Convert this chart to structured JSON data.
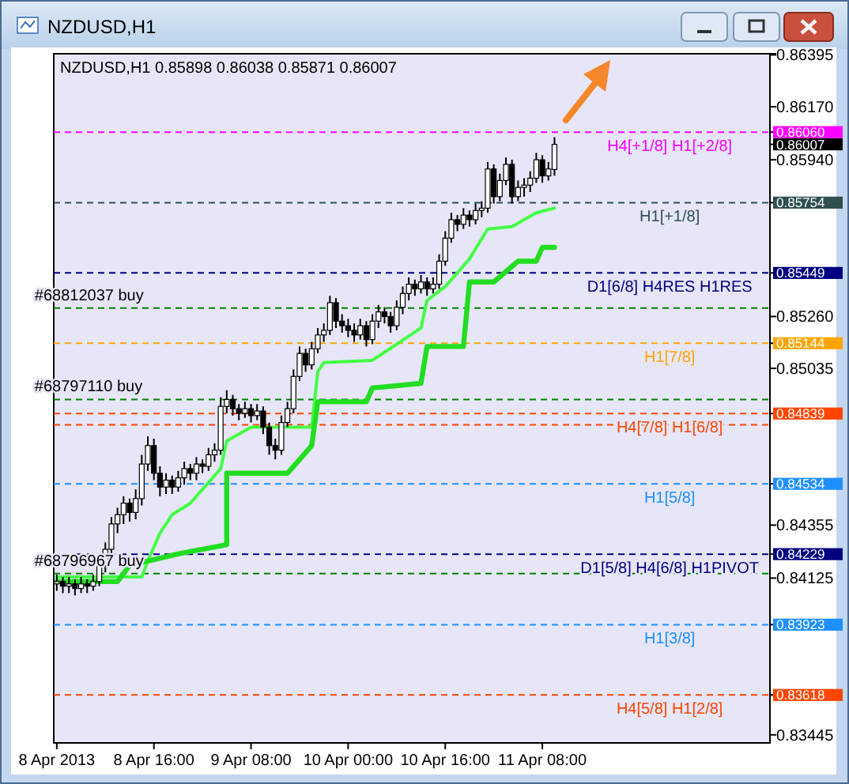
{
  "chart_data": {
    "type": "candlestick",
    "title": "NZDUSD,H1",
    "subtitle": "NZDUSD,H1  0.85898 0.86038 0.85871 0.86007",
    "x": [
      "2013-04-08T00:00",
      "2013-04-08T01:00",
      "2013-04-08T02:00",
      "2013-04-08T03:00",
      "2013-04-08T04:00",
      "2013-04-08T05:00",
      "2013-04-08T06:00",
      "2013-04-08T07:00",
      "2013-04-08T08:00",
      "2013-04-08T09:00",
      "2013-04-08T10:00",
      "2013-04-08T11:00",
      "2013-04-08T12:00",
      "2013-04-08T13:00",
      "2013-04-08T14:00",
      "2013-04-08T15:00",
      "2013-04-08T16:00",
      "2013-04-08T17:00",
      "2013-04-08T18:00",
      "2013-04-08T19:00",
      "2013-04-08T20:00",
      "2013-04-08T21:00",
      "2013-04-08T22:00",
      "2013-04-08T23:00",
      "2013-04-09T00:00",
      "2013-04-09T01:00",
      "2013-04-09T02:00",
      "2013-04-09T03:00",
      "2013-04-09T04:00",
      "2013-04-09T05:00",
      "2013-04-09T06:00",
      "2013-04-09T07:00",
      "2013-04-09T08:00",
      "2013-04-09T09:00",
      "2013-04-09T10:00",
      "2013-04-09T11:00",
      "2013-04-09T12:00",
      "2013-04-09T13:00",
      "2013-04-09T14:00",
      "2013-04-09T15:00",
      "2013-04-09T16:00",
      "2013-04-09T17:00",
      "2013-04-09T18:00",
      "2013-04-09T19:00",
      "2013-04-09T20:00",
      "2013-04-09T21:00",
      "2013-04-09T22:00",
      "2013-04-09T23:00",
      "2013-04-10T00:00",
      "2013-04-10T01:00",
      "2013-04-10T02:00",
      "2013-04-10T03:00",
      "2013-04-10T04:00",
      "2013-04-10T05:00",
      "2013-04-10T06:00",
      "2013-04-10T07:00",
      "2013-04-10T08:00",
      "2013-04-10T09:00",
      "2013-04-10T10:00",
      "2013-04-10T11:00",
      "2013-04-10T12:00",
      "2013-04-10T13:00",
      "2013-04-10T14:00",
      "2013-04-10T15:00",
      "2013-04-10T16:00",
      "2013-04-10T17:00",
      "2013-04-10T18:00",
      "2013-04-10T19:00",
      "2013-04-10T20:00",
      "2013-04-10T21:00",
      "2013-04-10T22:00",
      "2013-04-10T23:00",
      "2013-04-11T00:00",
      "2013-04-11T01:00",
      "2013-04-11T02:00",
      "2013-04-11T03:00",
      "2013-04-11T04:00",
      "2013-04-11T05:00",
      "2013-04-11T06:00",
      "2013-04-11T07:00",
      "2013-04-11T08:00",
      "2013-04-11T09:00",
      "2013-04-11T10:00"
    ],
    "ohlc": [
      [
        0.841,
        0.8414,
        0.8407,
        0.8411
      ],
      [
        0.8411,
        0.8413,
        0.8406,
        0.8409
      ],
      [
        0.8409,
        0.8413,
        0.8406,
        0.841
      ],
      [
        0.841,
        0.8412,
        0.8405,
        0.8408
      ],
      [
        0.8408,
        0.8413,
        0.8406,
        0.841
      ],
      [
        0.841,
        0.8412,
        0.8406,
        0.8409
      ],
      [
        0.8409,
        0.8414,
        0.8407,
        0.8411
      ],
      [
        0.8411,
        0.8421,
        0.8409,
        0.8418
      ],
      [
        0.8418,
        0.8428,
        0.8415,
        0.8425
      ],
      [
        0.8425,
        0.8439,
        0.8422,
        0.8436
      ],
      [
        0.8436,
        0.8443,
        0.8432,
        0.844
      ],
      [
        0.844,
        0.8448,
        0.8436,
        0.8445
      ],
      [
        0.8445,
        0.8447,
        0.8437,
        0.8441
      ],
      [
        0.8441,
        0.8451,
        0.8438,
        0.8447
      ],
      [
        0.8447,
        0.8466,
        0.8444,
        0.8462
      ],
      [
        0.8462,
        0.8474,
        0.8459,
        0.847
      ],
      [
        0.847,
        0.8473,
        0.8455,
        0.8458
      ],
      [
        0.8458,
        0.8461,
        0.8448,
        0.8452
      ],
      [
        0.8452,
        0.8458,
        0.8449,
        0.8455
      ],
      [
        0.8455,
        0.8457,
        0.8449,
        0.8452
      ],
      [
        0.8452,
        0.8459,
        0.845,
        0.8456
      ],
      [
        0.8456,
        0.8463,
        0.8453,
        0.846
      ],
      [
        0.846,
        0.8462,
        0.8455,
        0.8458
      ],
      [
        0.8458,
        0.8465,
        0.8455,
        0.8462
      ],
      [
        0.8462,
        0.8464,
        0.8458,
        0.8461
      ],
      [
        0.8461,
        0.8469,
        0.8459,
        0.8466
      ],
      [
        0.8466,
        0.8471,
        0.8463,
        0.8468
      ],
      [
        0.8468,
        0.8491,
        0.8466,
        0.8487
      ],
      [
        0.8487,
        0.8494,
        0.8484,
        0.849
      ],
      [
        0.849,
        0.8492,
        0.8483,
        0.8486
      ],
      [
        0.8486,
        0.8488,
        0.8481,
        0.8484
      ],
      [
        0.8484,
        0.8489,
        0.8482,
        0.8486
      ],
      [
        0.8486,
        0.8488,
        0.848,
        0.8483
      ],
      [
        0.8483,
        0.8488,
        0.8481,
        0.8485
      ],
      [
        0.8485,
        0.8487,
        0.8475,
        0.8478
      ],
      [
        0.8478,
        0.848,
        0.8466,
        0.847
      ],
      [
        0.847,
        0.8473,
        0.8464,
        0.8468
      ],
      [
        0.8468,
        0.8483,
        0.8466,
        0.848
      ],
      [
        0.848,
        0.8489,
        0.8478,
        0.8486
      ],
      [
        0.8486,
        0.8503,
        0.8484,
        0.85
      ],
      [
        0.85,
        0.8513,
        0.8498,
        0.851
      ],
      [
        0.851,
        0.8512,
        0.8502,
        0.8505
      ],
      [
        0.8505,
        0.8515,
        0.8503,
        0.8512
      ],
      [
        0.8512,
        0.8521,
        0.851,
        0.8518
      ],
      [
        0.8518,
        0.8523,
        0.8515,
        0.852
      ],
      [
        0.852,
        0.8535,
        0.8518,
        0.8532
      ],
      [
        0.8532,
        0.8534,
        0.8521,
        0.8524
      ],
      [
        0.8524,
        0.8527,
        0.8519,
        0.8522
      ],
      [
        0.8522,
        0.8525,
        0.8517,
        0.852
      ],
      [
        0.852,
        0.8523,
        0.8515,
        0.8518
      ],
      [
        0.8518,
        0.8525,
        0.8516,
        0.8522
      ],
      [
        0.8522,
        0.8524,
        0.8513,
        0.8516
      ],
      [
        0.8516,
        0.8527,
        0.8514,
        0.8524
      ],
      [
        0.8524,
        0.8531,
        0.8521,
        0.8528
      ],
      [
        0.8528,
        0.853,
        0.8523,
        0.8526
      ],
      [
        0.8526,
        0.8528,
        0.8519,
        0.8522
      ],
      [
        0.8522,
        0.8533,
        0.852,
        0.853
      ],
      [
        0.853,
        0.8539,
        0.8527,
        0.8536
      ],
      [
        0.8536,
        0.8543,
        0.8533,
        0.854
      ],
      [
        0.854,
        0.8542,
        0.8535,
        0.8538
      ],
      [
        0.8538,
        0.8544,
        0.8536,
        0.8541
      ],
      [
        0.8541,
        0.8543,
        0.8535,
        0.8538
      ],
      [
        0.8538,
        0.8543,
        0.8536,
        0.854
      ],
      [
        0.854,
        0.8553,
        0.8538,
        0.855
      ],
      [
        0.855,
        0.8563,
        0.8548,
        0.856
      ],
      [
        0.856,
        0.8571,
        0.8558,
        0.8568
      ],
      [
        0.8568,
        0.857,
        0.8563,
        0.8566
      ],
      [
        0.8566,
        0.8573,
        0.8564,
        0.857
      ],
      [
        0.857,
        0.8572,
        0.8565,
        0.8568
      ],
      [
        0.8568,
        0.8575,
        0.8566,
        0.8572
      ],
      [
        0.8572,
        0.8576,
        0.8569,
        0.8573
      ],
      [
        0.8573,
        0.8593,
        0.8571,
        0.859
      ],
      [
        0.859,
        0.8592,
        0.8575,
        0.8578
      ],
      [
        0.8578,
        0.8588,
        0.8576,
        0.8585
      ],
      [
        0.8585,
        0.8595,
        0.8583,
        0.8592
      ],
      [
        0.8592,
        0.8594,
        0.8575,
        0.8578
      ],
      [
        0.8578,
        0.8585,
        0.8576,
        0.8582
      ],
      [
        0.8582,
        0.8586,
        0.8578,
        0.8583
      ],
      [
        0.8583,
        0.8589,
        0.858,
        0.8586
      ],
      [
        0.8586,
        0.8597,
        0.8584,
        0.8594
      ],
      [
        0.8594,
        0.8596,
        0.8584,
        0.8587
      ],
      [
        0.8587,
        0.8593,
        0.8585,
        0.859
      ],
      [
        0.85898,
        0.86038,
        0.85871,
        0.86007
      ]
    ],
    "series": [
      {
        "type": "line",
        "color": "#44ff44",
        "x": [
          "2013-04-08T00:00",
          "2013-04-08T14:00",
          "2013-04-08T15:00",
          "2013-04-08T17:00",
          "2013-04-08T19:00",
          "2013-04-08T22:00",
          "2013-04-09T03:00",
          "2013-04-09T04:00",
          "2013-04-09T08:00",
          "2013-04-09T18:00",
          "2013-04-09T19:00",
          "2013-04-09T20:00",
          "2013-04-10T04:00",
          "2013-04-10T08:00",
          "2013-04-10T12:00",
          "2013-04-10T13:00",
          "2013-04-10T15:00",
          "2013-04-10T16:00",
          "2013-04-10T20:00",
          "2013-04-10T23:00",
          "2013-04-11T03:00",
          "2013-04-11T07:00",
          "2013-04-11T10:00"
        ],
        "values": [
          0.8413,
          0.8413,
          0.842,
          0.8432,
          0.844,
          0.8445,
          0.846,
          0.8472,
          0.8478,
          0.8478,
          0.8502,
          0.8506,
          0.8507,
          0.8514,
          0.8521,
          0.8533,
          0.8537,
          0.8539,
          0.8551,
          0.8564,
          0.8565,
          0.8571,
          0.8573
        ]
      },
      {
        "type": "line",
        "color": "#22dd22",
        "x": [
          "2013-04-08T00:00",
          "2013-04-08T10:00",
          "2013-04-08T12:00",
          "2013-04-08T20:00",
          "2013-04-09T04:00",
          "2013-04-09T04:00",
          "2013-04-09T14:00",
          "2013-04-09T18:00",
          "2013-04-09T19:00",
          "2013-04-10T03:00",
          "2013-04-10T04:00",
          "2013-04-10T12:00",
          "2013-04-10T13:00",
          "2013-04-10T19:00",
          "2013-04-10T20:00",
          "2013-04-11T00:00",
          "2013-04-11T04:00",
          "2013-04-11T07:00",
          "2013-04-11T08:00",
          "2013-04-11T10:00"
        ],
        "values": [
          0.8411,
          0.8411,
          0.8418,
          0.8423,
          0.8427,
          0.8458,
          0.8458,
          0.847,
          0.8489,
          0.8489,
          0.8495,
          0.8497,
          0.8513,
          0.8513,
          0.8541,
          0.8541,
          0.855,
          0.855,
          0.8556,
          0.8556
        ]
      }
    ],
    "xlim": [
      "2013-04-07T23:30",
      "2013-04-12T21:30"
    ],
    "xticks": [
      {
        "value": "2013-04-08T00:00",
        "label": "8 Apr 2013"
      },
      {
        "value": "2013-04-08T16:00",
        "label": "8 Apr 16:00"
      },
      {
        "value": "2013-04-09T08:00",
        "label": "9 Apr 08:00"
      },
      {
        "value": "2013-04-10T00:00",
        "label": "10 Apr 00:00"
      },
      {
        "value": "2013-04-10T16:00",
        "label": "10 Apr 16:00"
      },
      {
        "value": "2013-04-11T08:00",
        "label": "11 Apr 08:00"
      }
    ],
    "ylim": [
      0.8341,
      0.864
    ],
    "yticks": [
      0.86395,
      {
        "value": 0.8617,
        "label": "0.86170"
      },
      {
        "value": 0.8606,
        "label": "0.86060"
      },
      {
        "value": 0.86007,
        "label": "0.86007"
      },
      {
        "value": 0.8594,
        "label": "0.85940"
      },
      {
        "value": 0.85754,
        "label": "0.85754"
      },
      {
        "value": 0.85449,
        "label": "0.85449"
      },
      {
        "value": 0.8526,
        "label": "0.85260"
      },
      {
        "value": 0.85144,
        "label": "0.85144"
      },
      0.85035,
      {
        "value": 0.84839,
        "label": "0.84839"
      },
      {
        "value": 0.84534,
        "label": "0.84534"
      },
      0.84355,
      {
        "value": 0.84229,
        "label": "0.84229"
      },
      0.84125,
      {
        "value": 0.83923,
        "label": "0.83923"
      },
      {
        "value": 0.83618,
        "label": "0.83618"
      },
      0.83445
    ],
    "ref_lines": [
      {
        "axis": "y",
        "value": 0.8606,
        "label": "H4[+1/8] H1[+2/8]",
        "color": "#ff00ff",
        "line_style": "dashed"
      },
      {
        "axis": "y",
        "value": 0.85754,
        "label": "H1[+1/8]",
        "color": "#2f4f4f",
        "line_style": "dashed"
      },
      {
        "axis": "y",
        "value": 0.85449,
        "label": "D1[6/8] H4RES H1RES",
        "color": "#000080",
        "line_style": "dashed"
      },
      {
        "axis": "y",
        "value": 0.85297,
        "color": "#008000",
        "line_style": "dashed"
      },
      {
        "axis": "y",
        "value": 0.85144,
        "label": "H1[7/8]",
        "color": "#ffa500",
        "line_style": "dashed"
      },
      {
        "axis": "y",
        "value": 0.849,
        "color": "#008000",
        "line_style": "dashed"
      },
      {
        "axis": "y",
        "value": 0.8479,
        "color": "#ff4500",
        "line_style": "dashed"
      },
      {
        "axis": "y",
        "value": 0.84839,
        "label": "H4[7/8] H1[6/8]",
        "color": "#ff4500",
        "line_style": "dashed"
      },
      {
        "axis": "y",
        "value": 0.84534,
        "label": "H1[5/8]",
        "color": "#1e90ff",
        "line_style": "dashed"
      },
      {
        "axis": "y",
        "value": 0.84229,
        "label": "D1[5/8] H4[6/8] H1PIVOT",
        "color": "#000080",
        "line_style": "dashed"
      },
      {
        "axis": "y",
        "value": 0.84145,
        "color": "#008000",
        "line_style": "dashed"
      },
      {
        "axis": "y",
        "value": 0.83923,
        "label": "H1[3/8]",
        "color": "#1e90ff",
        "line_style": "dashed"
      },
      {
        "axis": "y",
        "value": 0.83618,
        "label": "H4[5/8] H1[2/8]",
        "color": "#ff4500",
        "line_style": "dashed"
      }
    ],
    "annotations": [
      {
        "text": "#68812037 buy",
        "x": "2013-04-08T00:00",
        "y": 0.85297
      },
      {
        "text": "#68797110 buy",
        "x": "2013-04-08T00:00",
        "y": 0.849
      },
      {
        "text": "#68796967 buy",
        "x": "2013-04-08T00:00",
        "y": 0.84145
      }
    ]
  }
}
